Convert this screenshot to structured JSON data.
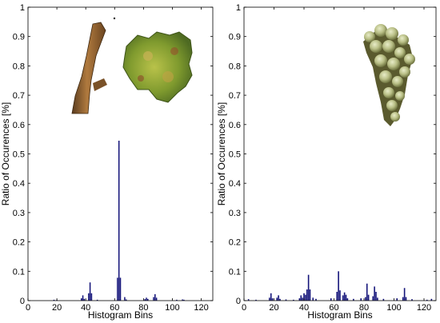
{
  "chart_data": [
    {
      "type": "bar",
      "title": "",
      "xlabel": "Histogram Bins",
      "ylabel": "Ratio of Occurences [%]",
      "xlim": [
        0,
        128
      ],
      "ylim": [
        0,
        1
      ],
      "x_ticks": [
        "0",
        "20",
        "40",
        "60",
        "80",
        "100",
        "120"
      ],
      "y_ticks": [
        "0",
        "0.1",
        "0.2",
        "0.3",
        "0.4",
        "0.5",
        "0.6",
        "0.7",
        "0.8",
        "0.9",
        "1"
      ],
      "grid": false,
      "bar_color": "#14147a",
      "inset_image": "grape-stem-and-leaf-photo",
      "bars": [
        {
          "x": 18,
          "y": 0.003
        },
        {
          "x": 20,
          "y": 0.002
        },
        {
          "x": 37,
          "y": 0.008
        },
        {
          "x": 38,
          "y": 0.018
        },
        {
          "x": 39,
          "y": 0.006
        },
        {
          "x": 42,
          "y": 0.025
        },
        {
          "x": 43,
          "y": 0.062
        },
        {
          "x": 44,
          "y": 0.025
        },
        {
          "x": 48,
          "y": 0.003
        },
        {
          "x": 62,
          "y": 0.078
        },
        {
          "x": 63,
          "y": 0.545
        },
        {
          "x": 64,
          "y": 0.078
        },
        {
          "x": 67,
          "y": 0.012
        },
        {
          "x": 68,
          "y": 0.004
        },
        {
          "x": 81,
          "y": 0.005
        },
        {
          "x": 82,
          "y": 0.01
        },
        {
          "x": 83,
          "y": 0.006
        },
        {
          "x": 87,
          "y": 0.012
        },
        {
          "x": 88,
          "y": 0.022
        },
        {
          "x": 89,
          "y": 0.01
        },
        {
          "x": 103,
          "y": 0.003
        },
        {
          "x": 107,
          "y": 0.004
        },
        {
          "x": 108,
          "y": 0.003
        }
      ]
    },
    {
      "type": "bar",
      "title": "",
      "xlabel": "Histogram Bins",
      "ylabel": "Ratio of Occurences [%]",
      "xlim": [
        0,
        128
      ],
      "ylim": [
        0,
        1
      ],
      "x_ticks": [
        "0",
        "20",
        "40",
        "60",
        "80",
        "100",
        "120"
      ],
      "y_ticks": [
        "0",
        "0.1",
        "0.2",
        "0.3",
        "0.4",
        "0.5",
        "0.6",
        "0.7",
        "0.8",
        "0.9",
        "1"
      ],
      "grid": false,
      "bar_color": "#14147a",
      "inset_image": "grape-bunch-photo",
      "bars": [
        {
          "x": 3,
          "y": 0.005
        },
        {
          "x": 8,
          "y": 0.003
        },
        {
          "x": 17,
          "y": 0.01
        },
        {
          "x": 18,
          "y": 0.025
        },
        {
          "x": 19,
          "y": 0.008
        },
        {
          "x": 22,
          "y": 0.01
        },
        {
          "x": 23,
          "y": 0.018
        },
        {
          "x": 24,
          "y": 0.006
        },
        {
          "x": 28,
          "y": 0.004
        },
        {
          "x": 33,
          "y": 0.003
        },
        {
          "x": 37,
          "y": 0.008
        },
        {
          "x": 38,
          "y": 0.018
        },
        {
          "x": 39,
          "y": 0.01
        },
        {
          "x": 40,
          "y": 0.025
        },
        {
          "x": 41,
          "y": 0.02
        },
        {
          "x": 42,
          "y": 0.038
        },
        {
          "x": 43,
          "y": 0.088
        },
        {
          "x": 44,
          "y": 0.038
        },
        {
          "x": 46,
          "y": 0.01
        },
        {
          "x": 48,
          "y": 0.006
        },
        {
          "x": 58,
          "y": 0.008
        },
        {
          "x": 62,
          "y": 0.03
        },
        {
          "x": 63,
          "y": 0.1
        },
        {
          "x": 64,
          "y": 0.035
        },
        {
          "x": 66,
          "y": 0.018
        },
        {
          "x": 67,
          "y": 0.028
        },
        {
          "x": 68,
          "y": 0.02
        },
        {
          "x": 69,
          "y": 0.008
        },
        {
          "x": 73,
          "y": 0.006
        },
        {
          "x": 78,
          "y": 0.008
        },
        {
          "x": 81,
          "y": 0.012
        },
        {
          "x": 82,
          "y": 0.058
        },
        {
          "x": 83,
          "y": 0.02
        },
        {
          "x": 86,
          "y": 0.015
        },
        {
          "x": 87,
          "y": 0.048
        },
        {
          "x": 88,
          "y": 0.03
        },
        {
          "x": 89,
          "y": 0.01
        },
        {
          "x": 93,
          "y": 0.006
        },
        {
          "x": 102,
          "y": 0.008
        },
        {
          "x": 106,
          "y": 0.012
        },
        {
          "x": 107,
          "y": 0.043
        },
        {
          "x": 108,
          "y": 0.012
        },
        {
          "x": 112,
          "y": 0.005
        },
        {
          "x": 122,
          "y": 0.003
        },
        {
          "x": 125,
          "y": 0.006
        }
      ]
    }
  ]
}
